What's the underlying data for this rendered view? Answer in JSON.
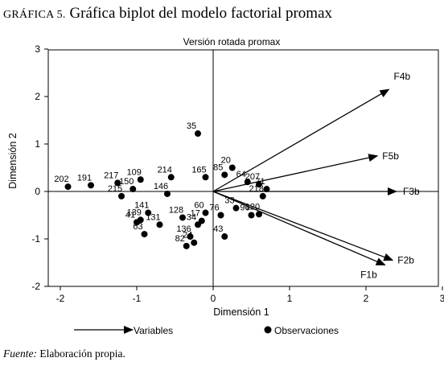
{
  "figure": {
    "label": "GRÁFICA 5.",
    "title": "Gráfica biplot del modelo factorial promax",
    "source_label": "Fuente:",
    "source_text": "Elaboración propia."
  },
  "chart_data": {
    "type": "scatter",
    "title": "Versión rotada promax",
    "xlabel": "Dimensión 1",
    "ylabel": "Dimensión 2",
    "xlim": [
      -2.2,
      3
    ],
    "ylim": [
      -2.1,
      3
    ],
    "xticks": [
      "-2",
      "-1",
      "0",
      "1",
      "2",
      "3"
    ],
    "yticks": [
      "-2",
      "-1",
      "0",
      "1",
      "2",
      "3"
    ],
    "reference_lines": {
      "x": 0,
      "y": 0
    },
    "legend": {
      "position": "bottom",
      "items": [
        "Variables",
        "Observaciones"
      ]
    },
    "variables": [
      {
        "name": "F4b",
        "x": 2.3,
        "y": 2.15
      },
      {
        "name": "F5b",
        "x": 2.15,
        "y": 0.75
      },
      {
        "name": "F3b",
        "x": 2.4,
        "y": 0.0
      },
      {
        "name": "F1b",
        "x": 2.25,
        "y": -1.55
      },
      {
        "name": "F2b",
        "x": 2.35,
        "y": -1.45
      }
    ],
    "observations": [
      {
        "id": "35",
        "x": -0.2,
        "y": 1.22
      },
      {
        "id": "20",
        "x": 0.25,
        "y": 0.5
      },
      {
        "id": "202",
        "x": -1.9,
        "y": 0.1
      },
      {
        "id": "191",
        "x": -1.6,
        "y": 0.13
      },
      {
        "id": "217",
        "x": -1.25,
        "y": 0.18
      },
      {
        "id": "109",
        "x": -0.95,
        "y": 0.25
      },
      {
        "id": "214",
        "x": -0.55,
        "y": 0.3
      },
      {
        "id": "215",
        "x": -1.2,
        "y": -0.1
      },
      {
        "id": "141",
        "x": -0.85,
        "y": -0.45
      },
      {
        "id": "41",
        "x": -1.0,
        "y": -0.65
      },
      {
        "id": "139",
        "x": -0.95,
        "y": -0.6
      },
      {
        "id": "131",
        "x": -0.7,
        "y": -0.7
      },
      {
        "id": "63",
        "x": -0.9,
        "y": -0.9
      },
      {
        "id": "82",
        "x": -0.35,
        "y": -1.15
      },
      {
        "id": "24",
        "x": -0.25,
        "y": -1.08
      },
      {
        "id": "34",
        "x": -0.2,
        "y": -0.7
      },
      {
        "id": "17",
        "x": -0.15,
        "y": -0.62
      },
      {
        "id": "43",
        "x": 0.15,
        "y": -0.95
      },
      {
        "id": "96",
        "x": 0.5,
        "y": -0.5
      },
      {
        "id": "120",
        "x": 0.6,
        "y": -0.48
      },
      {
        "id": "76",
        "x": 0.1,
        "y": -0.5
      },
      {
        "id": "60",
        "x": -0.1,
        "y": -0.45
      },
      {
        "id": "136",
        "x": -0.3,
        "y": -0.95
      },
      {
        "id": "128",
        "x": -0.4,
        "y": -0.55
      },
      {
        "id": "146",
        "x": -0.6,
        "y": -0.05
      },
      {
        "id": "150",
        "x": -1.05,
        "y": 0.05
      },
      {
        "id": "165",
        "x": -0.1,
        "y": 0.3
      },
      {
        "id": "85",
        "x": 0.15,
        "y": 0.35
      },
      {
        "id": "207",
        "x": 0.6,
        "y": 0.15
      },
      {
        "id": "218",
        "x": 0.65,
        "y": -0.1
      },
      {
        "id": "71",
        "x": 0.7,
        "y": 0.05
      },
      {
        "id": "33",
        "x": 0.3,
        "y": -0.35
      },
      {
        "id": "64",
        "x": 0.45,
        "y": 0.2
      }
    ]
  }
}
